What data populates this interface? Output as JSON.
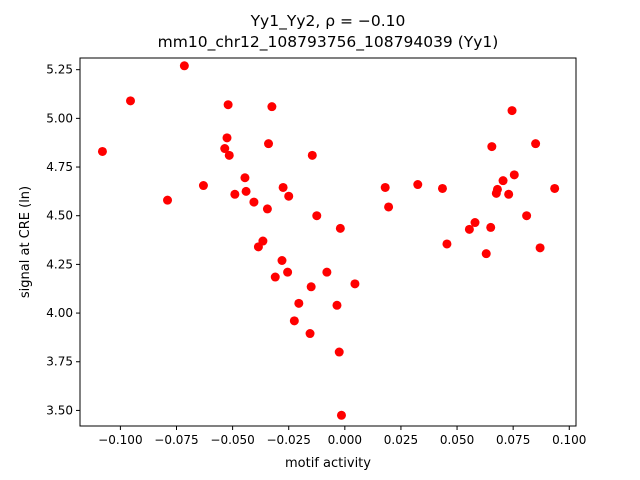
{
  "chart_data": {
    "type": "scatter",
    "title_line1": "Yy1_Yy2, ρ = −0.10",
    "title_line2": "mm10_chr12_108793756_108794039 (Yy1)",
    "xlabel": "motif activity",
    "ylabel": "signal at CRE (ln)",
    "xlim": [
      -0.118,
      0.103
    ],
    "ylim": [
      3.42,
      5.31
    ],
    "xticks": [
      -0.1,
      -0.075,
      -0.05,
      -0.025,
      0.0,
      0.025,
      0.05,
      0.075,
      0.1
    ],
    "xtick_labels": [
      "−0.100",
      "−0.075",
      "−0.050",
      "−0.025",
      "0.000",
      "0.025",
      "0.050",
      "0.075",
      "0.100"
    ],
    "yticks": [
      3.5,
      3.75,
      4.0,
      4.25,
      4.5,
      4.75,
      5.0,
      5.25
    ],
    "ytick_labels": [
      "3.50",
      "3.75",
      "4.00",
      "4.25",
      "4.50",
      "4.75",
      "5.00",
      "5.25"
    ],
    "marker_color": "#ff0000",
    "grid": false,
    "points": [
      {
        "x": -0.108,
        "y": 4.83
      },
      {
        "x": -0.0955,
        "y": 5.09
      },
      {
        "x": -0.079,
        "y": 4.58
      },
      {
        "x": -0.0715,
        "y": 5.27
      },
      {
        "x": -0.063,
        "y": 4.655
      },
      {
        "x": -0.0535,
        "y": 4.845
      },
      {
        "x": -0.0525,
        "y": 4.9
      },
      {
        "x": -0.052,
        "y": 5.07
      },
      {
        "x": -0.0515,
        "y": 4.81
      },
      {
        "x": -0.049,
        "y": 4.61
      },
      {
        "x": -0.0445,
        "y": 4.695
      },
      {
        "x": -0.044,
        "y": 4.625
      },
      {
        "x": -0.0405,
        "y": 4.57
      },
      {
        "x": -0.0385,
        "y": 4.34
      },
      {
        "x": -0.0365,
        "y": 4.37
      },
      {
        "x": -0.0345,
        "y": 4.535
      },
      {
        "x": -0.034,
        "y": 4.87
      },
      {
        "x": -0.0325,
        "y": 5.06
      },
      {
        "x": -0.031,
        "y": 4.185
      },
      {
        "x": -0.028,
        "y": 4.27
      },
      {
        "x": -0.0275,
        "y": 4.645
      },
      {
        "x": -0.0255,
        "y": 4.21
      },
      {
        "x": -0.025,
        "y": 4.6
      },
      {
        "x": -0.0225,
        "y": 3.96
      },
      {
        "x": -0.0205,
        "y": 4.05
      },
      {
        "x": -0.0155,
        "y": 3.895
      },
      {
        "x": -0.015,
        "y": 4.135
      },
      {
        "x": -0.0145,
        "y": 4.81
      },
      {
        "x": -0.0125,
        "y": 4.5
      },
      {
        "x": -0.008,
        "y": 4.21
      },
      {
        "x": -0.0035,
        "y": 4.04
      },
      {
        "x": -0.0025,
        "y": 3.8
      },
      {
        "x": -0.002,
        "y": 4.435
      },
      {
        "x": -0.0015,
        "y": 3.475
      },
      {
        "x": 0.0045,
        "y": 4.15
      },
      {
        "x": 0.018,
        "y": 4.645
      },
      {
        "x": 0.0195,
        "y": 4.545
      },
      {
        "x": 0.0325,
        "y": 4.66
      },
      {
        "x": 0.0435,
        "y": 4.64
      },
      {
        "x": 0.0455,
        "y": 4.355
      },
      {
        "x": 0.0555,
        "y": 4.43
      },
      {
        "x": 0.058,
        "y": 4.465
      },
      {
        "x": 0.063,
        "y": 4.305
      },
      {
        "x": 0.065,
        "y": 4.44
      },
      {
        "x": 0.0655,
        "y": 4.855
      },
      {
        "x": 0.0675,
        "y": 4.615
      },
      {
        "x": 0.068,
        "y": 4.635
      },
      {
        "x": 0.0705,
        "y": 4.68
      },
      {
        "x": 0.073,
        "y": 4.61
      },
      {
        "x": 0.0745,
        "y": 5.04
      },
      {
        "x": 0.0755,
        "y": 4.71
      },
      {
        "x": 0.081,
        "y": 4.5
      },
      {
        "x": 0.085,
        "y": 4.87
      },
      {
        "x": 0.087,
        "y": 4.335
      },
      {
        "x": 0.0935,
        "y": 4.64
      }
    ]
  }
}
